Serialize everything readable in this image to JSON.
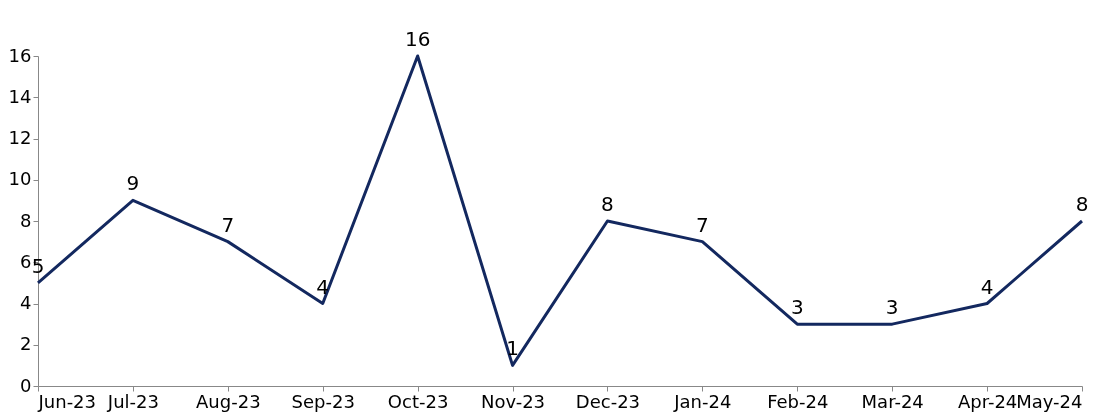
{
  "chart_data": {
    "type": "line",
    "categories": [
      "Jun-23",
      "Jul-23",
      "Aug-23",
      "Sep-23",
      "Oct-23",
      "Nov-23",
      "Dec-23",
      "Jan-24",
      "Feb-24",
      "Mar-24",
      "Apr-24",
      "May-24"
    ],
    "series": [
      {
        "color": "#13285f",
        "values": [
          5,
          9,
          7,
          4,
          16,
          1,
          8,
          7,
          3,
          3,
          4,
          8
        ]
      }
    ],
    "ylim": [
      0,
      16
    ],
    "yticks": [
      0,
      2,
      4,
      6,
      8,
      10,
      12,
      14,
      16
    ],
    "grid": false,
    "legend": false,
    "marker": "none",
    "line_style": "solid",
    "data_labels": true
  }
}
